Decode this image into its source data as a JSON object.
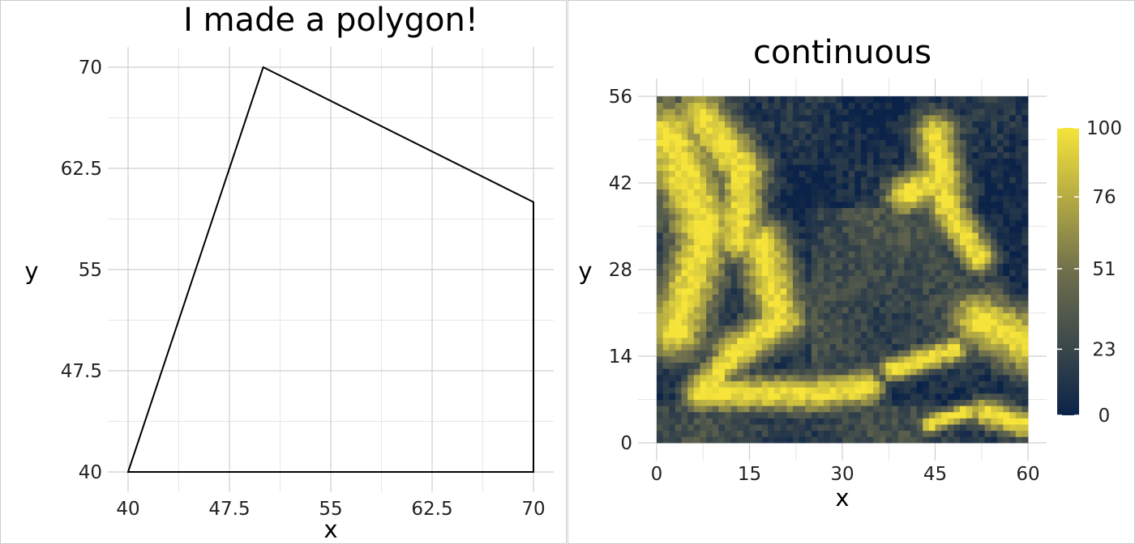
{
  "chart_data": [
    {
      "type": "polygon",
      "title": "I made a polygon!",
      "xlabel": "x",
      "ylabel": "y",
      "xlim": [
        40,
        70
      ],
      "ylim": [
        40,
        70
      ],
      "x_ticks": [
        "40",
        "47.5",
        "55",
        "62.5",
        "70"
      ],
      "y_ticks": [
        "40",
        "47.5",
        "55",
        "62.5",
        "70"
      ],
      "x_tick_values": [
        40,
        47.5,
        55,
        62.5,
        70
      ],
      "y_tick_values": [
        40,
        47.5,
        55,
        62.5,
        70
      ],
      "vertices": [
        [
          40,
          40
        ],
        [
          50,
          70
        ],
        [
          70,
          60
        ],
        [
          70,
          40
        ]
      ],
      "grid": true
    },
    {
      "type": "heatmap",
      "title": "continuous",
      "xlabel": "x",
      "ylabel": "y",
      "xlim": [
        0,
        60
      ],
      "ylim": [
        0,
        56
      ],
      "x_ticks": [
        "0",
        "15",
        "30",
        "45",
        "60"
      ],
      "y_ticks": [
        "0",
        "14",
        "28",
        "42",
        "56"
      ],
      "x_tick_values": [
        0,
        15,
        30,
        45,
        60
      ],
      "y_tick_values": [
        0,
        14,
        28,
        42,
        56
      ],
      "colorbar_ticks": [
        "100",
        "76",
        "51",
        "23",
        "0"
      ],
      "colorbar_values": [
        100,
        76,
        51,
        23,
        0
      ],
      "value_range": [
        0,
        100
      ],
      "colors": {
        "low": "#0b2348",
        "mid": "#6f6f4d",
        "high": "#f6e43a"
      },
      "grid": true
    }
  ]
}
